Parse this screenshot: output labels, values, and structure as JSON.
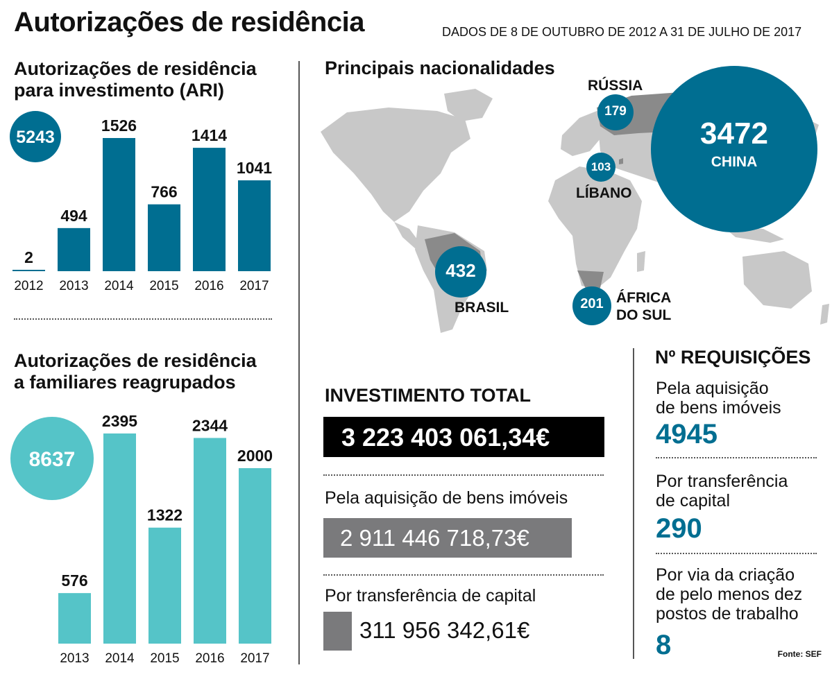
{
  "header": {
    "title": "Autorizações de residência",
    "subtitle": "DADOS DE 8 DE OUTUBRO DE 2012 A 31 DE JULHO DE 2017"
  },
  "colors": {
    "ari": "#006e91",
    "family": "#55c4c8",
    "black": "#000000",
    "gray": "#7a7a7c",
    "map_land": "#c8c8c8",
    "map_highlight": "#8a8a8a"
  },
  "chart_data": [
    {
      "type": "bar",
      "title": "Autorizações de residência para investimento (ARI)",
      "total": "5243",
      "categories": [
        "2012",
        "2013",
        "2014",
        "2015",
        "2016",
        "2017"
      ],
      "values": [
        2,
        494,
        1526,
        766,
        1414,
        1041
      ],
      "ylim": [
        0,
        1526
      ]
    },
    {
      "type": "bar",
      "title": "Autorizações de residência a familiares reagrupados",
      "total": "8637",
      "categories": [
        "2013",
        "2014",
        "2015",
        "2016",
        "2017"
      ],
      "values": [
        576,
        2395,
        1322,
        2344,
        2000
      ],
      "ylim": [
        0,
        2395
      ]
    }
  ],
  "sections": {
    "ari_title_line1": "Autorizações de residência",
    "ari_title_line2": "para investimento (ARI)",
    "fam_title_line1": "Autorizações de residência",
    "fam_title_line2": "a familiares reagrupados"
  },
  "map": {
    "title": "Principais nacionalidades",
    "countries": [
      {
        "name": "CHINA",
        "value": "3472"
      },
      {
        "name": "BRASIL",
        "value": "432"
      },
      {
        "name": "ÁFRICA DO SUL",
        "name_line1": "ÁFRICA",
        "name_line2": "DO SUL",
        "value": "201"
      },
      {
        "name": "RÚSSIA",
        "value": "179"
      },
      {
        "name": "LÍBANO",
        "value": "103"
      }
    ]
  },
  "investment": {
    "title": "INVESTIMENTO TOTAL",
    "total": "3 223 403 061,34€",
    "real_estate_label": "Pela aquisição de bens imóveis",
    "real_estate_value": "2 911 446 718,73€",
    "capital_label": "Por transferência de capital",
    "capital_value": "311 956 342,61€"
  },
  "requests": {
    "title": "Nº REQUISIÇÕES",
    "items": [
      {
        "label_line1": "Pela aquisição",
        "label_line2": "de bens imóveis",
        "value": "4945"
      },
      {
        "label_line1": "Por transferência",
        "label_line2": "de capital",
        "value": "290"
      },
      {
        "label_line1": "Por via da criação",
        "label_line2": "de pelo menos dez",
        "label_line3": "postos de trabalho",
        "value": "8"
      }
    ]
  },
  "source": "Fonte: SEF"
}
